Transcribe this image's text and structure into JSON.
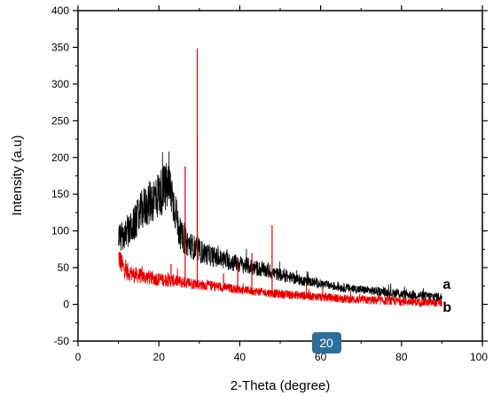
{
  "chart_data": {
    "type": "line",
    "title": "",
    "xlabel": "2-Theta (degree)",
    "ylabel": "Intensity (a.u)",
    "xlim": [
      0,
      100
    ],
    "ylim": [
      -50,
      400
    ],
    "xticks": [
      0,
      20,
      40,
      60,
      80,
      100
    ],
    "yticks": [
      -50,
      0,
      50,
      100,
      150,
      200,
      250,
      300,
      350,
      400
    ],
    "grid": false,
    "series": [
      {
        "name": "a",
        "color": "#000000",
        "x": [
          10,
          12,
          14,
          16,
          18,
          20,
          21,
          22,
          23,
          24,
          25,
          26,
          28,
          30,
          32,
          35,
          40,
          45,
          50,
          55,
          60,
          65,
          70,
          75,
          80,
          85,
          90
        ],
        "y": [
          90,
          95,
          110,
          130,
          140,
          150,
          155,
          160,
          155,
          130,
          100,
          88,
          80,
          72,
          68,
          62,
          55,
          48,
          40,
          33,
          28,
          23,
          20,
          17,
          14,
          12,
          10
        ],
        "peaks": [
          [
            29.5,
            230
          ],
          [
            26.5,
            110
          ]
        ]
      },
      {
        "name": "b",
        "color": "#e00000",
        "x": [
          10,
          11,
          12,
          14,
          16,
          18,
          20,
          22,
          24,
          26,
          28,
          30,
          35,
          40,
          45,
          50,
          55,
          60,
          65,
          70,
          75,
          80,
          85,
          90
        ],
        "y": [
          65,
          52,
          45,
          40,
          38,
          36,
          34,
          33,
          32,
          30,
          29,
          27,
          24,
          20,
          17,
          14,
          12,
          10,
          8,
          6,
          5,
          4,
          3,
          2
        ],
        "peaks": [
          [
            29.5,
            348
          ],
          [
            26.5,
            188
          ],
          [
            48,
            108
          ],
          [
            43,
            70
          ],
          [
            39.5,
            58
          ],
          [
            23,
            55
          ],
          [
            36,
            42
          ],
          [
            56.5,
            28
          ],
          [
            60.5,
            22
          ]
        ]
      }
    ],
    "series_labels": [
      {
        "text": "a",
        "x": 90,
        "y": 27
      },
      {
        "text": "b",
        "x": 90,
        "y": -3
      }
    ],
    "highlight_label": {
      "text": "20",
      "color": "#2f6d9c"
    }
  }
}
